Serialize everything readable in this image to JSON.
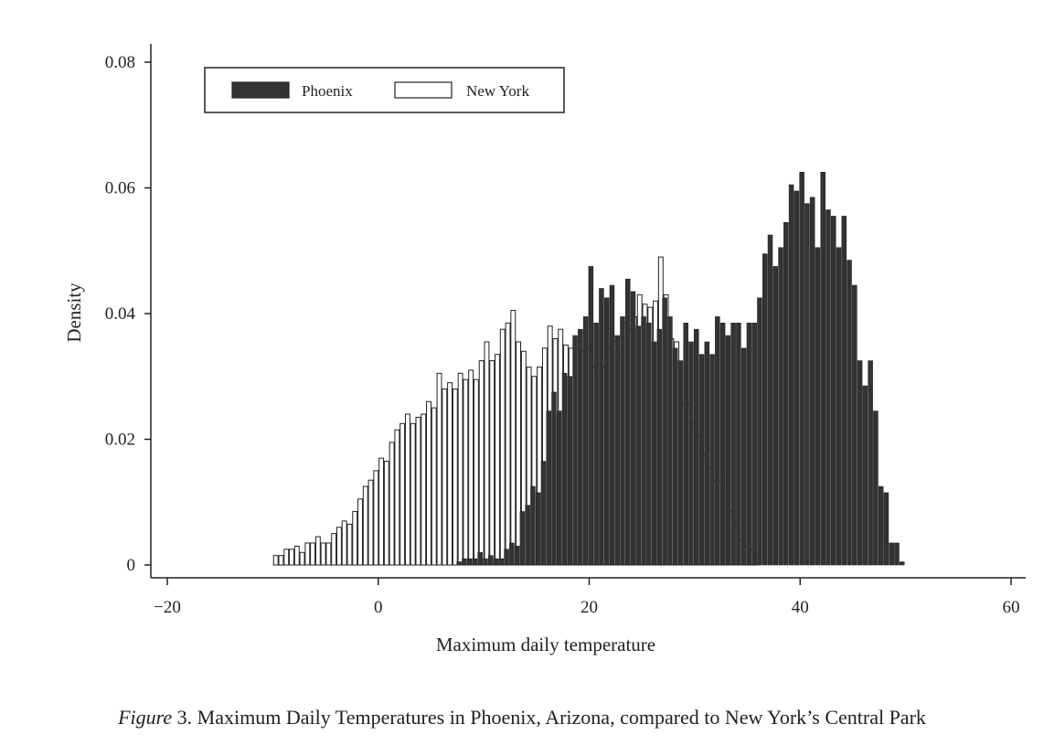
{
  "caption": {
    "prefix": "Figure",
    "text": " 3. Maximum Daily Temperatures in Phoenix, Arizona, compared to New York’s Central Park"
  },
  "colors": {
    "phoenix_fill": "#333333",
    "newyork_fill": "#ffffff",
    "bar_outline": "#222222",
    "axis": "#222222"
  },
  "chart_data": {
    "type": "bar",
    "xlabel": "Maximum daily temperature",
    "ylabel": "Density",
    "xlim": [
      -20,
      60
    ],
    "ylim": [
      0,
      0.08
    ],
    "xticks": [
      -20,
      0,
      20,
      40,
      60
    ],
    "yticks": [
      0,
      0.02,
      0.04,
      0.06,
      0.08
    ],
    "xtick_labels": [
      "−20",
      "0",
      "20",
      "40",
      "60"
    ],
    "ytick_labels": [
      "0",
      "0.02",
      "0.04",
      "0.06",
      "0.08"
    ],
    "grid": false,
    "legend": "top-left",
    "bin_width": 0.5,
    "series": [
      {
        "name": "New York",
        "fill": "#ffffff",
        "x": [
          -9.5,
          -9,
          -8.5,
          -8,
          -7.5,
          -7,
          -6.5,
          -6,
          -5.5,
          -5,
          -4.5,
          -4,
          -3.5,
          -3,
          -2.5,
          -2,
          -1.5,
          -1,
          -0.5,
          0,
          0.5,
          1,
          1.5,
          2,
          2.5,
          3,
          3.5,
          4,
          4.5,
          5,
          5.5,
          6,
          6.5,
          7,
          7.5,
          8,
          8.5,
          9,
          9.5,
          10,
          10.5,
          11,
          11.5,
          12,
          12.5,
          13,
          13.5,
          14,
          14.5,
          15,
          15.5,
          16,
          16.5,
          17,
          17.5,
          18,
          18.5,
          19,
          19.5,
          20,
          20.5,
          21,
          21.5,
          22,
          22.5,
          23,
          23.5,
          24,
          24.5,
          25,
          25.5,
          26,
          26.5,
          27,
          27.5,
          28,
          28.5,
          29,
          29.5,
          30,
          30.5,
          31,
          31.5,
          32,
          32.5,
          33,
          33.5,
          34,
          34.5,
          35,
          35.5,
          36
        ],
        "values": [
          0.0015,
          0.0015,
          0.0025,
          0.0025,
          0.003,
          0.002,
          0.0035,
          0.0035,
          0.0045,
          0.0035,
          0.0035,
          0.005,
          0.006,
          0.007,
          0.0065,
          0.0085,
          0.0105,
          0.0125,
          0.0135,
          0.015,
          0.017,
          0.0165,
          0.0195,
          0.0215,
          0.0225,
          0.024,
          0.0225,
          0.0235,
          0.024,
          0.026,
          0.025,
          0.0305,
          0.028,
          0.029,
          0.028,
          0.0305,
          0.0295,
          0.031,
          0.0295,
          0.0325,
          0.0355,
          0.0325,
          0.0335,
          0.0375,
          0.0385,
          0.0405,
          0.0355,
          0.034,
          0.0315,
          0.03,
          0.0315,
          0.0345,
          0.038,
          0.036,
          0.0375,
          0.035,
          0.0345,
          0.0355,
          0.034,
          0.0345,
          0.0315,
          0.0305,
          0.0315,
          0.0345,
          0.0355,
          0.033,
          0.0385,
          0.0375,
          0.0395,
          0.043,
          0.0415,
          0.041,
          0.042,
          0.049,
          0.043,
          0.036,
          0.0355,
          0.0255,
          0.0255,
          0.0225,
          0.0205,
          0.0175,
          0.0155,
          0.0135,
          0.0135,
          0.0105,
          0.0085,
          0.006,
          0.004,
          0.003,
          0.0025,
          0.0015
        ]
      },
      {
        "name": "Phoenix",
        "fill": "#333333",
        "x": [
          7.5,
          8,
          8.5,
          9,
          9.5,
          10,
          10.5,
          11,
          11.5,
          12,
          12.5,
          13,
          13.5,
          14,
          14.5,
          15,
          15.5,
          16,
          16.5,
          17,
          17.5,
          18,
          18.5,
          19,
          19.5,
          20,
          20.5,
          21,
          21.5,
          22,
          22.5,
          23,
          23.5,
          24,
          24.5,
          25,
          25.5,
          26,
          26.5,
          27,
          27.5,
          28,
          28.5,
          29,
          29.5,
          30,
          30.5,
          31,
          31.5,
          32,
          32.5,
          33,
          33.5,
          34,
          34.5,
          35,
          35.5,
          36,
          36.5,
          37,
          37.5,
          38,
          38.5,
          39,
          39.5,
          40,
          40.5,
          41,
          41.5,
          42,
          42.5,
          43,
          43.5,
          44,
          44.5,
          45,
          45.5,
          46,
          46.5,
          47,
          47.5,
          48,
          48.5,
          49,
          49.5
        ],
        "values": [
          0.0005,
          0.001,
          0.001,
          0.001,
          0.002,
          0.001,
          0.0015,
          0.001,
          0.001,
          0.0025,
          0.0035,
          0.003,
          0.0085,
          0.0095,
          0.0125,
          0.0115,
          0.0165,
          0.0245,
          0.0275,
          0.0245,
          0.0305,
          0.03,
          0.0365,
          0.0375,
          0.0395,
          0.0475,
          0.0385,
          0.044,
          0.0425,
          0.0445,
          0.0365,
          0.0395,
          0.0455,
          0.0435,
          0.038,
          0.0395,
          0.0385,
          0.0355,
          0.0375,
          0.0425,
          0.0395,
          0.0345,
          0.0325,
          0.0385,
          0.0355,
          0.0375,
          0.0335,
          0.0355,
          0.0335,
          0.0395,
          0.0385,
          0.0365,
          0.0385,
          0.0385,
          0.0345,
          0.0385,
          0.0385,
          0.0425,
          0.0495,
          0.0525,
          0.0475,
          0.0505,
          0.0545,
          0.0605,
          0.0595,
          0.0625,
          0.0575,
          0.0585,
          0.0505,
          0.0625,
          0.0565,
          0.0555,
          0.0505,
          0.0555,
          0.0485,
          0.0445,
          0.0325,
          0.0285,
          0.0325,
          0.0245,
          0.0125,
          0.0115,
          0.0035,
          0.0035,
          0.0005
        ]
      }
    ]
  }
}
